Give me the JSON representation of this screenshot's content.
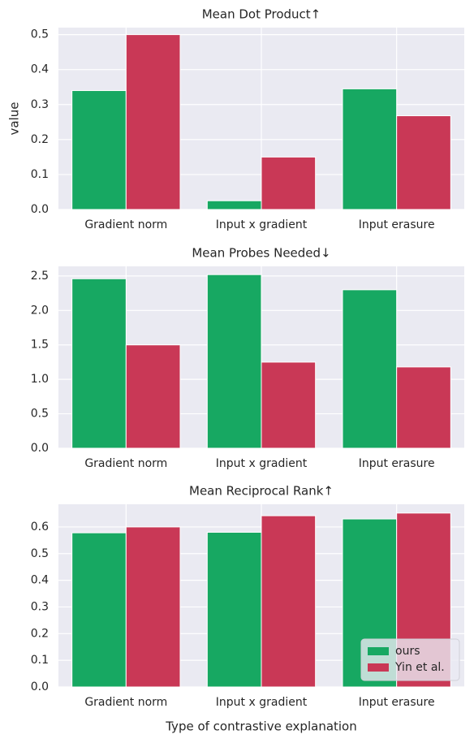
{
  "chart_data": [
    {
      "type": "bar",
      "title": "Mean Dot Product↑",
      "ylabel": "value",
      "categories": [
        "Gradient norm",
        "Input x gradient",
        "Input erasure"
      ],
      "series": [
        {
          "name": "ours",
          "color": "#17a862",
          "values": [
            0.34,
            0.025,
            0.345
          ]
        },
        {
          "name": "Yin et al.",
          "color": "#c93856",
          "values": [
            0.5,
            0.15,
            0.268
          ]
        }
      ],
      "ylim": [
        0,
        0.52
      ],
      "yticks": [
        {
          "value": 0,
          "label": "0.0"
        },
        0.1,
        0.2,
        0.3,
        0.4,
        0.5
      ],
      "grid": true
    },
    {
      "type": "bar",
      "title": "Mean Probes Needed↓",
      "categories": [
        "Gradient norm",
        "Input x gradient",
        "Input erasure"
      ],
      "series": [
        {
          "name": "ours",
          "color": "#17a862",
          "values": [
            2.46,
            2.52,
            2.3
          ]
        },
        {
          "name": "Yin et al.",
          "color": "#c93856",
          "values": [
            1.5,
            1.25,
            1.18
          ]
        }
      ],
      "ylim": [
        0,
        2.64
      ],
      "yticks": [
        {
          "value": 0,
          "label": "0.0"
        },
        0.5,
        {
          "value": 1,
          "label": "1.0"
        },
        1.5,
        {
          "value": 2,
          "label": "2.0"
        },
        2.5
      ],
      "grid": true
    },
    {
      "type": "bar",
      "title": "Mean Reciprocal Rank↑",
      "xlabel": "Type of contrastive explanation",
      "categories": [
        "Gradient norm",
        "Input x gradient",
        "Input erasure"
      ],
      "series": [
        {
          "name": "ours",
          "color": "#17a862",
          "values": [
            0.578,
            0.58,
            0.63
          ]
        },
        {
          "name": "Yin et al.",
          "color": "#c93856",
          "values": [
            0.6,
            0.642,
            0.652
          ]
        }
      ],
      "ylim": [
        0,
        0.685
      ],
      "yticks": [
        {
          "value": 0,
          "label": "0.0"
        },
        0.1,
        0.2,
        0.3,
        0.4,
        0.5,
        0.6
      ],
      "grid": true,
      "legend": "lower right"
    }
  ]
}
